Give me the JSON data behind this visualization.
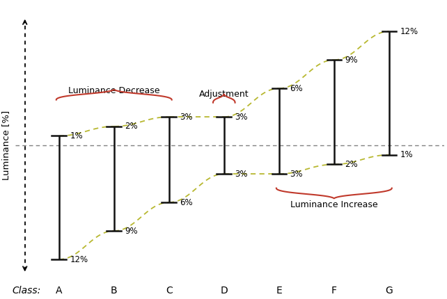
{
  "classes": [
    "A",
    "B",
    "C",
    "D",
    "E",
    "F",
    "G"
  ],
  "x_positions": [
    1,
    2,
    3,
    4,
    5,
    6,
    7
  ],
  "upper": [
    1,
    2,
    3,
    3,
    6,
    9,
    12
  ],
  "lower": [
    -12,
    -9,
    -6,
    -3,
    -3,
    -2,
    -1
  ],
  "ref_line": 0,
  "ylabel": "Luminance [%]",
  "xlabel_prefix": "Class:",
  "dashed_color": "#b8b830",
  "bar_color": "#111111",
  "brace_color": "#c0392b",
  "label_decrease": "Luminance Decrease",
  "label_adjustment": "Adjustment",
  "label_increase": "Luminance Increase",
  "background": "#ffffff",
  "figsize": [
    6.42,
    4.3
  ],
  "dpi": 100,
  "ylim": [
    -15,
    15
  ],
  "xlim": [
    0.2,
    8.0
  ]
}
